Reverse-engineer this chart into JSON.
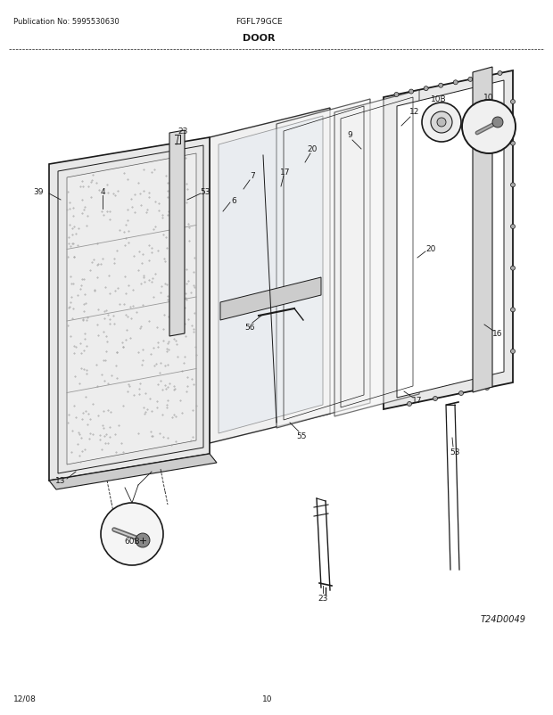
{
  "title": "DOOR",
  "pub_no": "Publication No: 5995530630",
  "model": "FGFL79GCE",
  "date": "12/08",
  "page": "10",
  "diagram_id": "T24D0049",
  "bg_color": "#ffffff",
  "lc": "#1a1a1a"
}
